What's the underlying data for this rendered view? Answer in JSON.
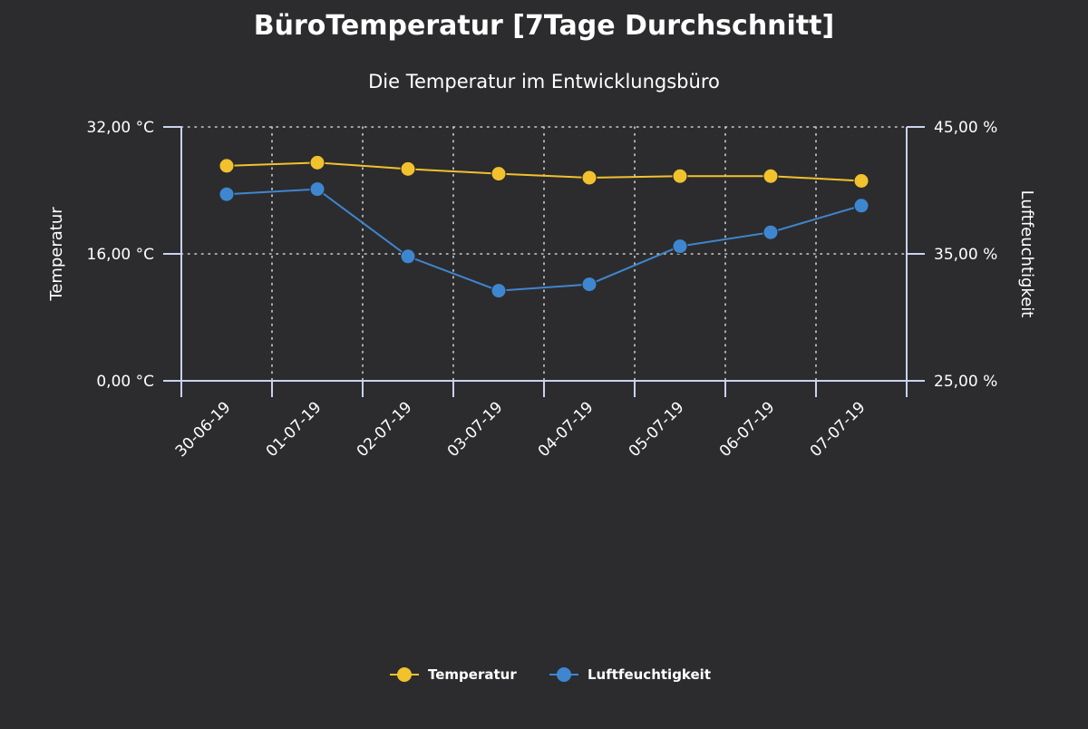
{
  "chart_data": {
    "type": "line",
    "title": "BüroTemperatur [7Tage Durchschnitt]",
    "subtitle": "Die Temperatur im Entwicklungsbüro",
    "categories": [
      "30-06-19",
      "01-07-19",
      "02-07-19",
      "03-07-19",
      "04-07-19",
      "05-07-19",
      "06-07-19",
      "07-07-19"
    ],
    "y_left": {
      "label": "Temperatur",
      "range": [
        0,
        32
      ],
      "ticks": [
        "0,00 °C",
        "16,00 °C",
        "32,00 °C"
      ],
      "tick_values": [
        0,
        16,
        32
      ]
    },
    "y_right": {
      "label": "Luftfeuchtigkeit",
      "range": [
        25,
        45
      ],
      "ticks": [
        "25,00 %",
        "35,00 %",
        "45,00 %"
      ],
      "tick_values": [
        25,
        35,
        45
      ]
    },
    "grid": true,
    "legend_position": "bottom-center",
    "series": [
      {
        "name": "Temperatur",
        "axis": "left",
        "color": "#f2c12e",
        "values": [
          27.1,
          27.5,
          26.7,
          26.1,
          25.6,
          25.8,
          25.8,
          25.2
        ]
      },
      {
        "name": "Luftfeuchtigkeit",
        "axis": "right",
        "color": "#3f86d0",
        "values": [
          39.7,
          40.1,
          34.8,
          32.1,
          32.6,
          35.6,
          36.7,
          38.8
        ]
      }
    ],
    "colors": {
      "background": "#2c2c2e",
      "axis": "#c9d3f0",
      "grid": "#cfcfcf",
      "text": "#ffffff"
    }
  }
}
